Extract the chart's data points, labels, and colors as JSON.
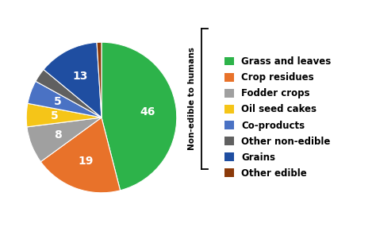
{
  "slices": [
    46,
    19,
    8,
    5,
    5,
    3,
    13,
    1
  ],
  "colors": [
    "#2db34a",
    "#e8722a",
    "#a0a0a0",
    "#f5c518",
    "#4a72c4",
    "#606060",
    "#1f4ea1",
    "#8B3a0a"
  ],
  "legend_labels": [
    "Grass and leaves",
    "Crop residues",
    "Fodder crops",
    "Oil seed cakes",
    "Co-products",
    "Other non-edible",
    "Grains",
    "Other edible"
  ],
  "bracket_label": "Non-edible to humans",
  "startangle": 90,
  "background_color": "#ffffff",
  "label_fontsize": 10,
  "legend_fontsize": 8.5
}
